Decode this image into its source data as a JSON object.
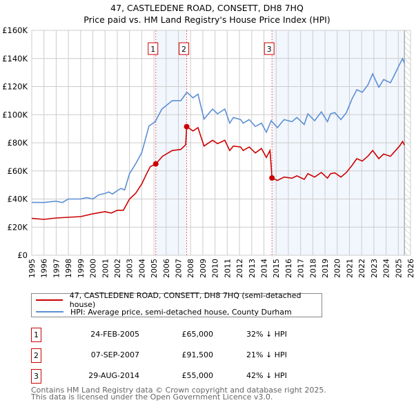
{
  "chart_data": {
    "type": "line",
    "title": "47, CASTLEDENE ROAD, CONSETT, DH8 7HQ",
    "subtitle": "Price paid vs. HM Land Registry's House Price Index (HPI)",
    "xlim": [
      1995,
      2026
    ],
    "ylim": [
      0,
      160000
    ],
    "x_ticks": [
      "1995",
      "1996",
      "1997",
      "1998",
      "1999",
      "2000",
      "2001",
      "2002",
      "2003",
      "2004",
      "2005",
      "2006",
      "2007",
      "2008",
      "2009",
      "2010",
      "2011",
      "2012",
      "2013",
      "2014",
      "2015",
      "2016",
      "2017",
      "2018",
      "2019",
      "2020",
      "2021",
      "2022",
      "2023",
      "2024",
      "2025",
      "2026"
    ],
    "y_ticks": [
      {
        "v": 0,
        "label": "£0"
      },
      {
        "v": 20000,
        "label": "£20K"
      },
      {
        "v": 40000,
        "label": "£40K"
      },
      {
        "v": 60000,
        "label": "£60K"
      },
      {
        "v": 80000,
        "label": "£80K"
      },
      {
        "v": 100000,
        "label": "£100K"
      },
      {
        "v": 120000,
        "label": "£120K"
      },
      {
        "v": 140000,
        "label": "£140K"
      },
      {
        "v": 160000,
        "label": "£160K"
      }
    ],
    "grid": true,
    "shaded_ranges": [
      [
        2005.15,
        2007.68
      ],
      [
        2014.66,
        2025.5
      ]
    ],
    "forecast_hatch_from": 2025.5,
    "series": [
      {
        "name": "47, CASTLEDENE ROAD, CONSETT, DH8 7HQ (semi-detached house)",
        "color": "#cc0000",
        "points": [
          [
            1995,
            26.2
          ],
          [
            1996,
            25.5
          ],
          [
            1997,
            26.5
          ],
          [
            1998,
            27
          ],
          [
            1999,
            27.5
          ],
          [
            2000,
            29.5
          ],
          [
            2001,
            31
          ],
          [
            2001.5,
            30
          ],
          [
            2002,
            32
          ],
          [
            2002.5,
            32
          ],
          [
            2003,
            40
          ],
          [
            2003.5,
            44
          ],
          [
            2004,
            50.7
          ],
          [
            2004.4,
            58
          ],
          [
            2004.7,
            63
          ],
          [
            2005.15,
            65
          ],
          [
            2005.7,
            70.4
          ],
          [
            2006.5,
            74.5
          ],
          [
            2007.2,
            75.3
          ],
          [
            2007.6,
            78.6
          ],
          [
            2007.68,
            91.5
          ],
          [
            2008.2,
            88.4
          ],
          [
            2008.6,
            90.8
          ],
          [
            2009.1,
            77.7
          ],
          [
            2009.8,
            81.8
          ],
          [
            2010.2,
            79.4
          ],
          [
            2010.8,
            81.8
          ],
          [
            2011.2,
            74.5
          ],
          [
            2011.5,
            77.7
          ],
          [
            2012.1,
            77
          ],
          [
            2012.3,
            74.5
          ],
          [
            2012.8,
            77
          ],
          [
            2013.3,
            72.8
          ],
          [
            2013.8,
            76
          ],
          [
            2014.2,
            69.6
          ],
          [
            2014.5,
            74.5
          ],
          [
            2014.66,
            55
          ],
          [
            2015.1,
            53.2
          ],
          [
            2015.65,
            55.6
          ],
          [
            2016.3,
            54.8
          ],
          [
            2016.7,
            56.5
          ],
          [
            2017.3,
            54
          ],
          [
            2017.6,
            58
          ],
          [
            2018.15,
            55.6
          ],
          [
            2018.7,
            58.9
          ],
          [
            2019.2,
            54.8
          ],
          [
            2019.45,
            58
          ],
          [
            2019.8,
            58.6
          ],
          [
            2020.3,
            55.6
          ],
          [
            2020.75,
            58.9
          ],
          [
            2021.2,
            63.8
          ],
          [
            2021.6,
            68.7
          ],
          [
            2022.05,
            67
          ],
          [
            2022.5,
            70.4
          ],
          [
            2022.9,
            74.5
          ],
          [
            2023.4,
            68.7
          ],
          [
            2023.8,
            72
          ],
          [
            2024.35,
            70.4
          ],
          [
            2024.6,
            72.8
          ],
          [
            2025.1,
            77.7
          ],
          [
            2025.35,
            81
          ],
          [
            2025.5,
            78.4
          ]
        ]
      },
      {
        "name": "HPI: Average price, semi-detached house, County Durham",
        "color": "#5b8fd4",
        "points": [
          [
            1995,
            37.6
          ],
          [
            1996,
            37.5
          ],
          [
            1997,
            38.5
          ],
          [
            1997.5,
            37.5
          ],
          [
            1998,
            40
          ],
          [
            1999,
            40
          ],
          [
            1999.5,
            41
          ],
          [
            2000,
            40
          ],
          [
            2000.5,
            43
          ],
          [
            2001,
            44
          ],
          [
            2001.3,
            45
          ],
          [
            2001.6,
            43.5
          ],
          [
            2002,
            46
          ],
          [
            2002.3,
            47.5
          ],
          [
            2002.6,
            46.5
          ],
          [
            2003,
            58
          ],
          [
            2003.5,
            65
          ],
          [
            2004,
            73
          ],
          [
            2004.6,
            92
          ],
          [
            2005.1,
            95
          ],
          [
            2005.65,
            104
          ],
          [
            2006.5,
            110
          ],
          [
            2007.2,
            110
          ],
          [
            2007.7,
            116
          ],
          [
            2008.2,
            112
          ],
          [
            2008.6,
            114.6
          ],
          [
            2009.1,
            97
          ],
          [
            2009.8,
            104
          ],
          [
            2010.2,
            100.6
          ],
          [
            2010.8,
            104
          ],
          [
            2011.2,
            94
          ],
          [
            2011.5,
            98
          ],
          [
            2012.1,
            96.5
          ],
          [
            2012.3,
            94
          ],
          [
            2012.8,
            96.5
          ],
          [
            2013.3,
            91.6
          ],
          [
            2013.8,
            94
          ],
          [
            2014.2,
            87.5
          ],
          [
            2014.6,
            95.7
          ],
          [
            2015.1,
            90.8
          ],
          [
            2015.65,
            96.5
          ],
          [
            2016.3,
            95
          ],
          [
            2016.7,
            98
          ],
          [
            2017.3,
            93
          ],
          [
            2017.6,
            100.6
          ],
          [
            2018.15,
            95.7
          ],
          [
            2018.7,
            102
          ],
          [
            2019.2,
            95
          ],
          [
            2019.45,
            100.6
          ],
          [
            2019.8,
            101.5
          ],
          [
            2020.3,
            96.5
          ],
          [
            2020.75,
            101.5
          ],
          [
            2021.2,
            111
          ],
          [
            2021.6,
            117.8
          ],
          [
            2022.05,
            116
          ],
          [
            2022.5,
            121
          ],
          [
            2022.9,
            129
          ],
          [
            2023.4,
            119.5
          ],
          [
            2023.8,
            125
          ],
          [
            2024.35,
            122.7
          ],
          [
            2024.6,
            126.8
          ],
          [
            2025.1,
            135.8
          ],
          [
            2025.35,
            140
          ],
          [
            2025.5,
            136.6
          ]
        ]
      }
    ],
    "sales": [
      {
        "id": "1",
        "x": 2005.15,
        "value": 65000
      },
      {
        "id": "2",
        "x": 2007.68,
        "value": 91500
      },
      {
        "id": "3",
        "x": 2014.66,
        "value": 55000
      }
    ],
    "legend": "below"
  },
  "title": "47, CASTLEDENE ROAD, CONSETT, DH8 7HQ",
  "subtitle": "Price paid vs. HM Land Registry's House Price Index (HPI)",
  "legend": {
    "property": "47, CASTLEDENE ROAD, CONSETT, DH8 7HQ (semi-detached house)",
    "hpi": "HPI: Average price, semi-detached house, County Durham"
  },
  "transactions": [
    {
      "num": "1",
      "date": "24-FEB-2005",
      "price": "£65,000",
      "hpi": "32% ↓ HPI"
    },
    {
      "num": "2",
      "date": "07-SEP-2007",
      "price": "£91,500",
      "hpi": "21% ↓ HPI"
    },
    {
      "num": "3",
      "date": "29-AUG-2014",
      "price": "£55,000",
      "hpi": "42% ↓ HPI"
    }
  ],
  "footer": {
    "line1": "Contains HM Land Registry data © Crown copyright and database right 2025.",
    "line2": "This data is licensed under the Open Government Licence v3.0."
  }
}
